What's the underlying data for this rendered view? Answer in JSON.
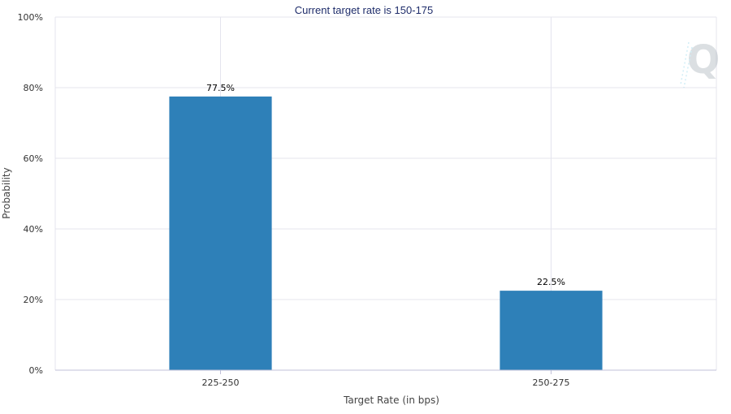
{
  "chart_data": {
    "type": "bar",
    "title": "Current target rate is 150-175",
    "xlabel": "Target Rate (in bps)",
    "ylabel": "Probability",
    "categories": [
      "225-250",
      "250-275"
    ],
    "values": [
      77.5,
      22.5
    ],
    "data_labels": [
      "77.5%",
      "22.5%"
    ],
    "ylim": [
      0,
      100
    ],
    "yticks": [
      0,
      20,
      40,
      60,
      80,
      100
    ],
    "ytick_labels": [
      "0%",
      "20%",
      "40%",
      "60%",
      "80%",
      "100%"
    ],
    "grid": true,
    "bar_color": "#2e80b8",
    "watermark": "Q"
  }
}
